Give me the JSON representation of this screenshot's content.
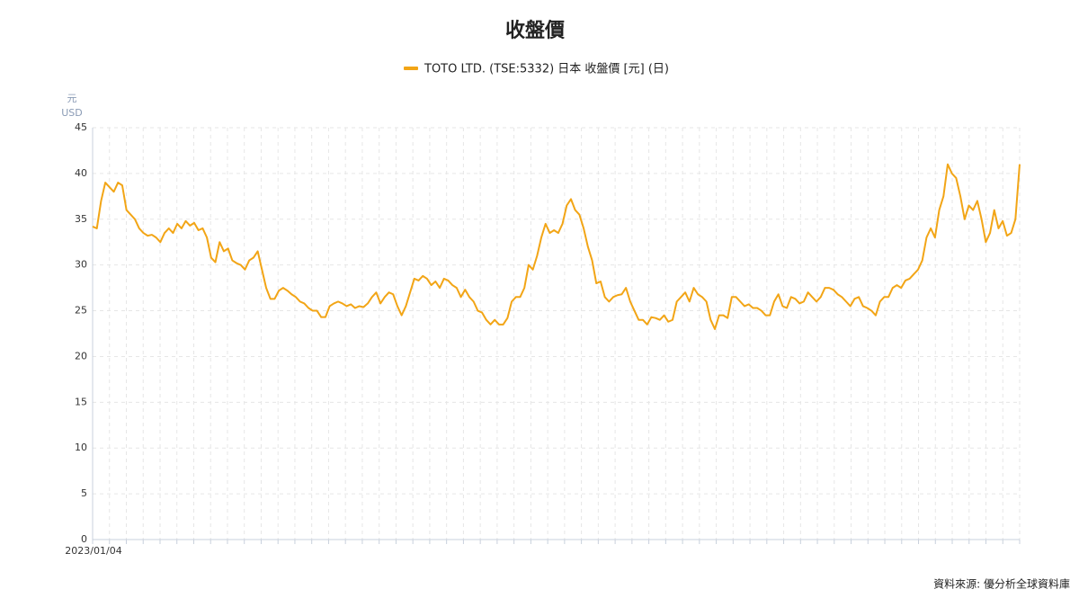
{
  "chart_data": {
    "type": "line",
    "title": "收盤價",
    "y_unit": "元",
    "y_currency": "USD",
    "source": "資料來源: 優分析全球資料庫",
    "ylim": [
      0,
      45
    ],
    "yticks": [
      0,
      5,
      10,
      15,
      20,
      25,
      30,
      35,
      40,
      45
    ],
    "grid": true,
    "categories": [
      "2023/01/04",
      null,
      null,
      null,
      null,
      null,
      null,
      null,
      null,
      null,
      null,
      null,
      null,
      null,
      null,
      null,
      null,
      null,
      null,
      null,
      null,
      null,
      null,
      null,
      null,
      null,
      null,
      null,
      null,
      null,
      null,
      null,
      null,
      null,
      null,
      null,
      null,
      null,
      null,
      null,
      null,
      null,
      null,
      null,
      null,
      null,
      null,
      null,
      null,
      null,
      null,
      null,
      null,
      null,
      null,
      null,
      null,
      null,
      null,
      null,
      null,
      null,
      null,
      null,
      null,
      null,
      null,
      null,
      null,
      null,
      null,
      null,
      null,
      null,
      null,
      null,
      null,
      null,
      null,
      null,
      null,
      null,
      null,
      null,
      null,
      null,
      null,
      null,
      null,
      null,
      null,
      null,
      null,
      null,
      null,
      null,
      null,
      null,
      null,
      null,
      null,
      null,
      null,
      null,
      null,
      null,
      null,
      null,
      null,
      null,
      null,
      null,
      null,
      null,
      null,
      null,
      null,
      null,
      null,
      null,
      null,
      null,
      null,
      null,
      null,
      null,
      null,
      null,
      null,
      null,
      null,
      null,
      null,
      null,
      null,
      null,
      null,
      null,
      null,
      null,
      null,
      null,
      null,
      null,
      null,
      null,
      null,
      null,
      null,
      null,
      null,
      null,
      null,
      null,
      null,
      null,
      null,
      null,
      null,
      null,
      null,
      null,
      null,
      null,
      null,
      null,
      null,
      null,
      null,
      null,
      null,
      null,
      null,
      null,
      null,
      null,
      null,
      null,
      null,
      null,
      null,
      null,
      null,
      null,
      null,
      null,
      null,
      null,
      null,
      null,
      null,
      null,
      null,
      null,
      null,
      null,
      null,
      null,
      null,
      null,
      null,
      null,
      null,
      null,
      null,
      null,
      null,
      null,
      null,
      null,
      null,
      null,
      null,
      null,
      null,
      null,
      null,
      null,
      null,
      null
    ],
    "series": [
      {
        "name": "TOTO LTD. (TSE:5332) 日本 收盤價 [元] (日)",
        "color": "#f2a516",
        "values": [
          34.2,
          34,
          37,
          39,
          38.5,
          38,
          39,
          38.7,
          36,
          35.5,
          35,
          34,
          33.5,
          33.2,
          33.3,
          33,
          32.5,
          33.5,
          34,
          33.5,
          34.5,
          34,
          34.8,
          34.3,
          34.6,
          33.8,
          34,
          33,
          30.8,
          30.3,
          32.5,
          31.5,
          31.8,
          30.5,
          30.2,
          30,
          29.5,
          30.5,
          30.8,
          31.5,
          29.5,
          27.5,
          26.3,
          26.3,
          27.2,
          27.5,
          27.2,
          26.8,
          26.5,
          26,
          25.8,
          25.3,
          25,
          25,
          24.3,
          24.3,
          25.5,
          25.8,
          26,
          25.8,
          25.5,
          25.7,
          25.3,
          25.5,
          25.4,
          25.8,
          26.5,
          27,
          25.8,
          26.5,
          27,
          26.8,
          25.5,
          24.5,
          25.5,
          27,
          28.5,
          28.3,
          28.8,
          28.5,
          27.8,
          28.2,
          27.5,
          28.5,
          28.3,
          27.8,
          27.5,
          26.5,
          27.3,
          26.5,
          26,
          25,
          24.8,
          24,
          23.5,
          24,
          23.5,
          23.5,
          24.2,
          26,
          26.5,
          26.5,
          27.5,
          30,
          29.5,
          31,
          33,
          34.5,
          33.5,
          33.8,
          33.5,
          34.5,
          36.5,
          37.2,
          36,
          35.5,
          34,
          32,
          30.5,
          28,
          28.2,
          26.5,
          26,
          26.5,
          26.7,
          26.8,
          27.5,
          26,
          25,
          24,
          24,
          23.5,
          24.3,
          24.2,
          24,
          24.5,
          23.8,
          24,
          26,
          26.5,
          27,
          26,
          27.5,
          26.8,
          26.5,
          26,
          24,
          23,
          24.5,
          24.5,
          24.2,
          26.5,
          26.5,
          26,
          25.5,
          25.7,
          25.3,
          25.3,
          25,
          24.5,
          24.5,
          26,
          26.8,
          25.5,
          25.3,
          26.5,
          26.3,
          25.8,
          26,
          27,
          26.5,
          26,
          26.5,
          27.5,
          27.5,
          27.3,
          26.8,
          26.5,
          26,
          25.5,
          26.3,
          26.5,
          25.5,
          25.3,
          25,
          24.5,
          26,
          26.5,
          26.5,
          27.5,
          27.8,
          27.5,
          28.3,
          28.5,
          29,
          29.5,
          30.5,
          33,
          34,
          33,
          36,
          37.5,
          41,
          40,
          39.5,
          37.5,
          35,
          36.5,
          36,
          37,
          35,
          32.5,
          33.5,
          36,
          34,
          34.8,
          33.2,
          33.5,
          35,
          41
        ]
      }
    ]
  }
}
